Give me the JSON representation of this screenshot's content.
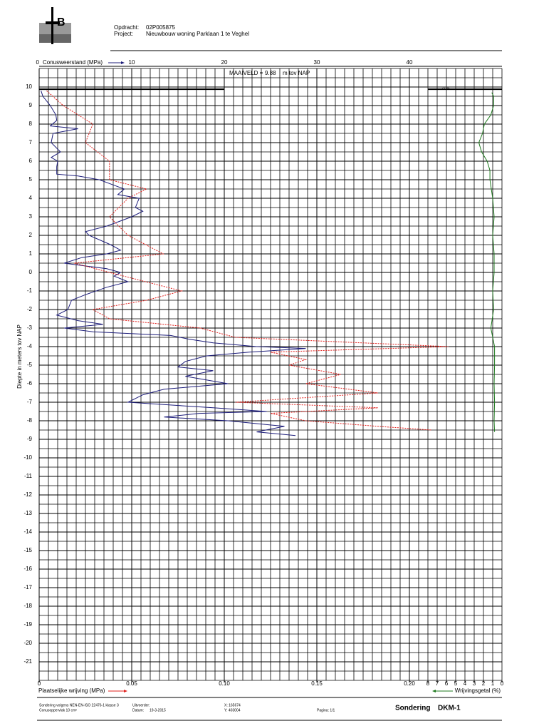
{
  "header": {
    "order_label": "Opdracht:",
    "order": "02P005875",
    "project_label": "Project:",
    "project": "Nieuwbouw woning Parklaan 1 te Veghel"
  },
  "chart_data": {
    "type": "line",
    "ground_level_label": "MAAIVELD =",
    "ground_level": 9.88,
    "ground_level_unit": "m tov NAP",
    "annotation": "22 %",
    "y_label": "Diepte in meters tov NAP",
    "ylim": [
      11,
      -22
    ],
    "yticks": [
      10,
      9,
      8,
      7,
      6,
      5,
      4,
      3,
      2,
      1,
      0,
      -1,
      -2,
      -3,
      -4,
      -5,
      -6,
      -7,
      -8,
      -9,
      -10,
      -11,
      -12,
      -13,
      -14,
      -15,
      -16,
      -17,
      -18,
      -19,
      -20,
      -21
    ],
    "xlim": [
      0,
      50
    ],
    "xticks": [
      0,
      10,
      20,
      30,
      40
    ],
    "x2lim": [
      0,
      0.25
    ],
    "x2ticks": [
      0,
      0.05,
      {
        "value": 0.1,
        "label": "0.10"
      },
      0.15,
      {
        "value": 0.2,
        "label": "0.20"
      }
    ],
    "x3lim": [
      50,
      0
    ],
    "x3ticks": [
      8,
      7,
      6,
      5,
      4,
      3,
      2,
      1,
      0
    ],
    "grid": true,
    "series": [
      {
        "name": "Conusweerstand (MPa)",
        "color": "#1c1c7a",
        "axis": "x",
        "depth": [
          9.8,
          9.5,
          9,
          8.5,
          8.2,
          7.9,
          7.75,
          7.5,
          7,
          6.5,
          6.2,
          6,
          5.7,
          5.3,
          5.2,
          5,
          4.7,
          4.5,
          4.2,
          4,
          3.5,
          3.3,
          3,
          2.5,
          2.2,
          2,
          1.5,
          1.2,
          1,
          0.8,
          0.5,
          0.2,
          0,
          -0.2,
          -0.5,
          -0.8,
          -1.2,
          -1.5,
          -2,
          -2.3,
          -2.6,
          -2.8,
          -3,
          -3.2,
          -3.4,
          -3.6,
          -3.8,
          -4,
          -4.1,
          -4.3,
          -4.5,
          -4.8,
          -5.1,
          -5.3,
          -5.6,
          -6,
          -6.3,
          -6.6,
          -7,
          -7.3,
          -7.5,
          -7.6,
          -7.8,
          -8,
          -8.3,
          -8.6,
          -8.8
        ],
        "values": [
          0.2,
          0.4,
          1.2,
          1.8,
          1.9,
          1.2,
          4.2,
          1.5,
          1.3,
          2.3,
          1.3,
          2,
          1.9,
          1.9,
          4.2,
          6.5,
          8.1,
          9.2,
          8.5,
          10.8,
          10.4,
          11.2,
          10,
          7.3,
          5,
          5.4,
          7.7,
          8.8,
          7.3,
          4.6,
          2.7,
          7.3,
          8.8,
          8.1,
          9.6,
          7.3,
          5,
          3.5,
          3.1,
          1.9,
          4.2,
          6.9,
          2.7,
          5.8,
          14.2,
          16.2,
          18.8,
          23.5,
          28.8,
          22.7,
          18.1,
          15.8,
          15,
          18.8,
          15.8,
          20.4,
          13.5,
          11.2,
          9.6,
          18.8,
          24.6,
          17.3,
          13.5,
          20.4,
          26.5,
          23.5,
          27.7
        ]
      },
      {
        "name": "Plaatselijke wrijving (MPa)",
        "color": "#e0201c",
        "axis": "x2",
        "depth": [
          9.8,
          9,
          8,
          7,
          6,
          5,
          4.5,
          4,
          3,
          2,
          1,
          0.5,
          0,
          -1,
          -1.5,
          -2,
          -2.5,
          -3,
          -3.5,
          -4,
          -4.3,
          -4.7,
          -5,
          -5.5,
          -6,
          -6.5,
          -7,
          -7.3,
          -7.6,
          -8,
          -8.3,
          -8.5
        ],
        "values": [
          0.004,
          0.013,
          0.029,
          0.025,
          0.038,
          0.038,
          0.058,
          0.048,
          0.038,
          0.048,
          0.067,
          0.019,
          0.038,
          0.077,
          0.058,
          0.029,
          0.038,
          0.087,
          0.106,
          0.221,
          0.125,
          0.144,
          0.135,
          0.163,
          0.144,
          0.183,
          0.106,
          0.183,
          0.125,
          0.144,
          0.183,
          0.212
        ]
      },
      {
        "name": "Wrijvingsgetal (%)",
        "color": "#1f7a1f",
        "axis": "x3",
        "depth": [
          9.7,
          9.5,
          9,
          8.5,
          8,
          7.5,
          7,
          6.5,
          6,
          5.5,
          5,
          4,
          3,
          2,
          1,
          0,
          -1,
          -2,
          -3,
          -4,
          -5,
          -6,
          -7,
          -8,
          -8.6
        ],
        "values": [
          1.1,
          0.9,
          0.9,
          1.2,
          1.9,
          2.1,
          2.5,
          2.2,
          1.6,
          1.3,
          1.3,
          1.0,
          0.85,
          1.0,
          0.85,
          0.85,
          1.0,
          0.9,
          1.2,
          0.8,
          0.8,
          0.85,
          0.8,
          0.85,
          0.8
        ]
      }
    ]
  },
  "footer": {
    "standard": "Sondering volgens NEN-EN-ISO 22476-1 klasse 3",
    "cone_area": "Conusoppervlak 10 cm²",
    "executor_label": "Uitvoerder:",
    "date_label": "Datum:",
    "date": "19-3-2015",
    "x": "X: 165674",
    "y": "Y: 403004",
    "page": "Pagina: 1/1",
    "title_label": "Sondering",
    "title_id": "DKM-1"
  }
}
